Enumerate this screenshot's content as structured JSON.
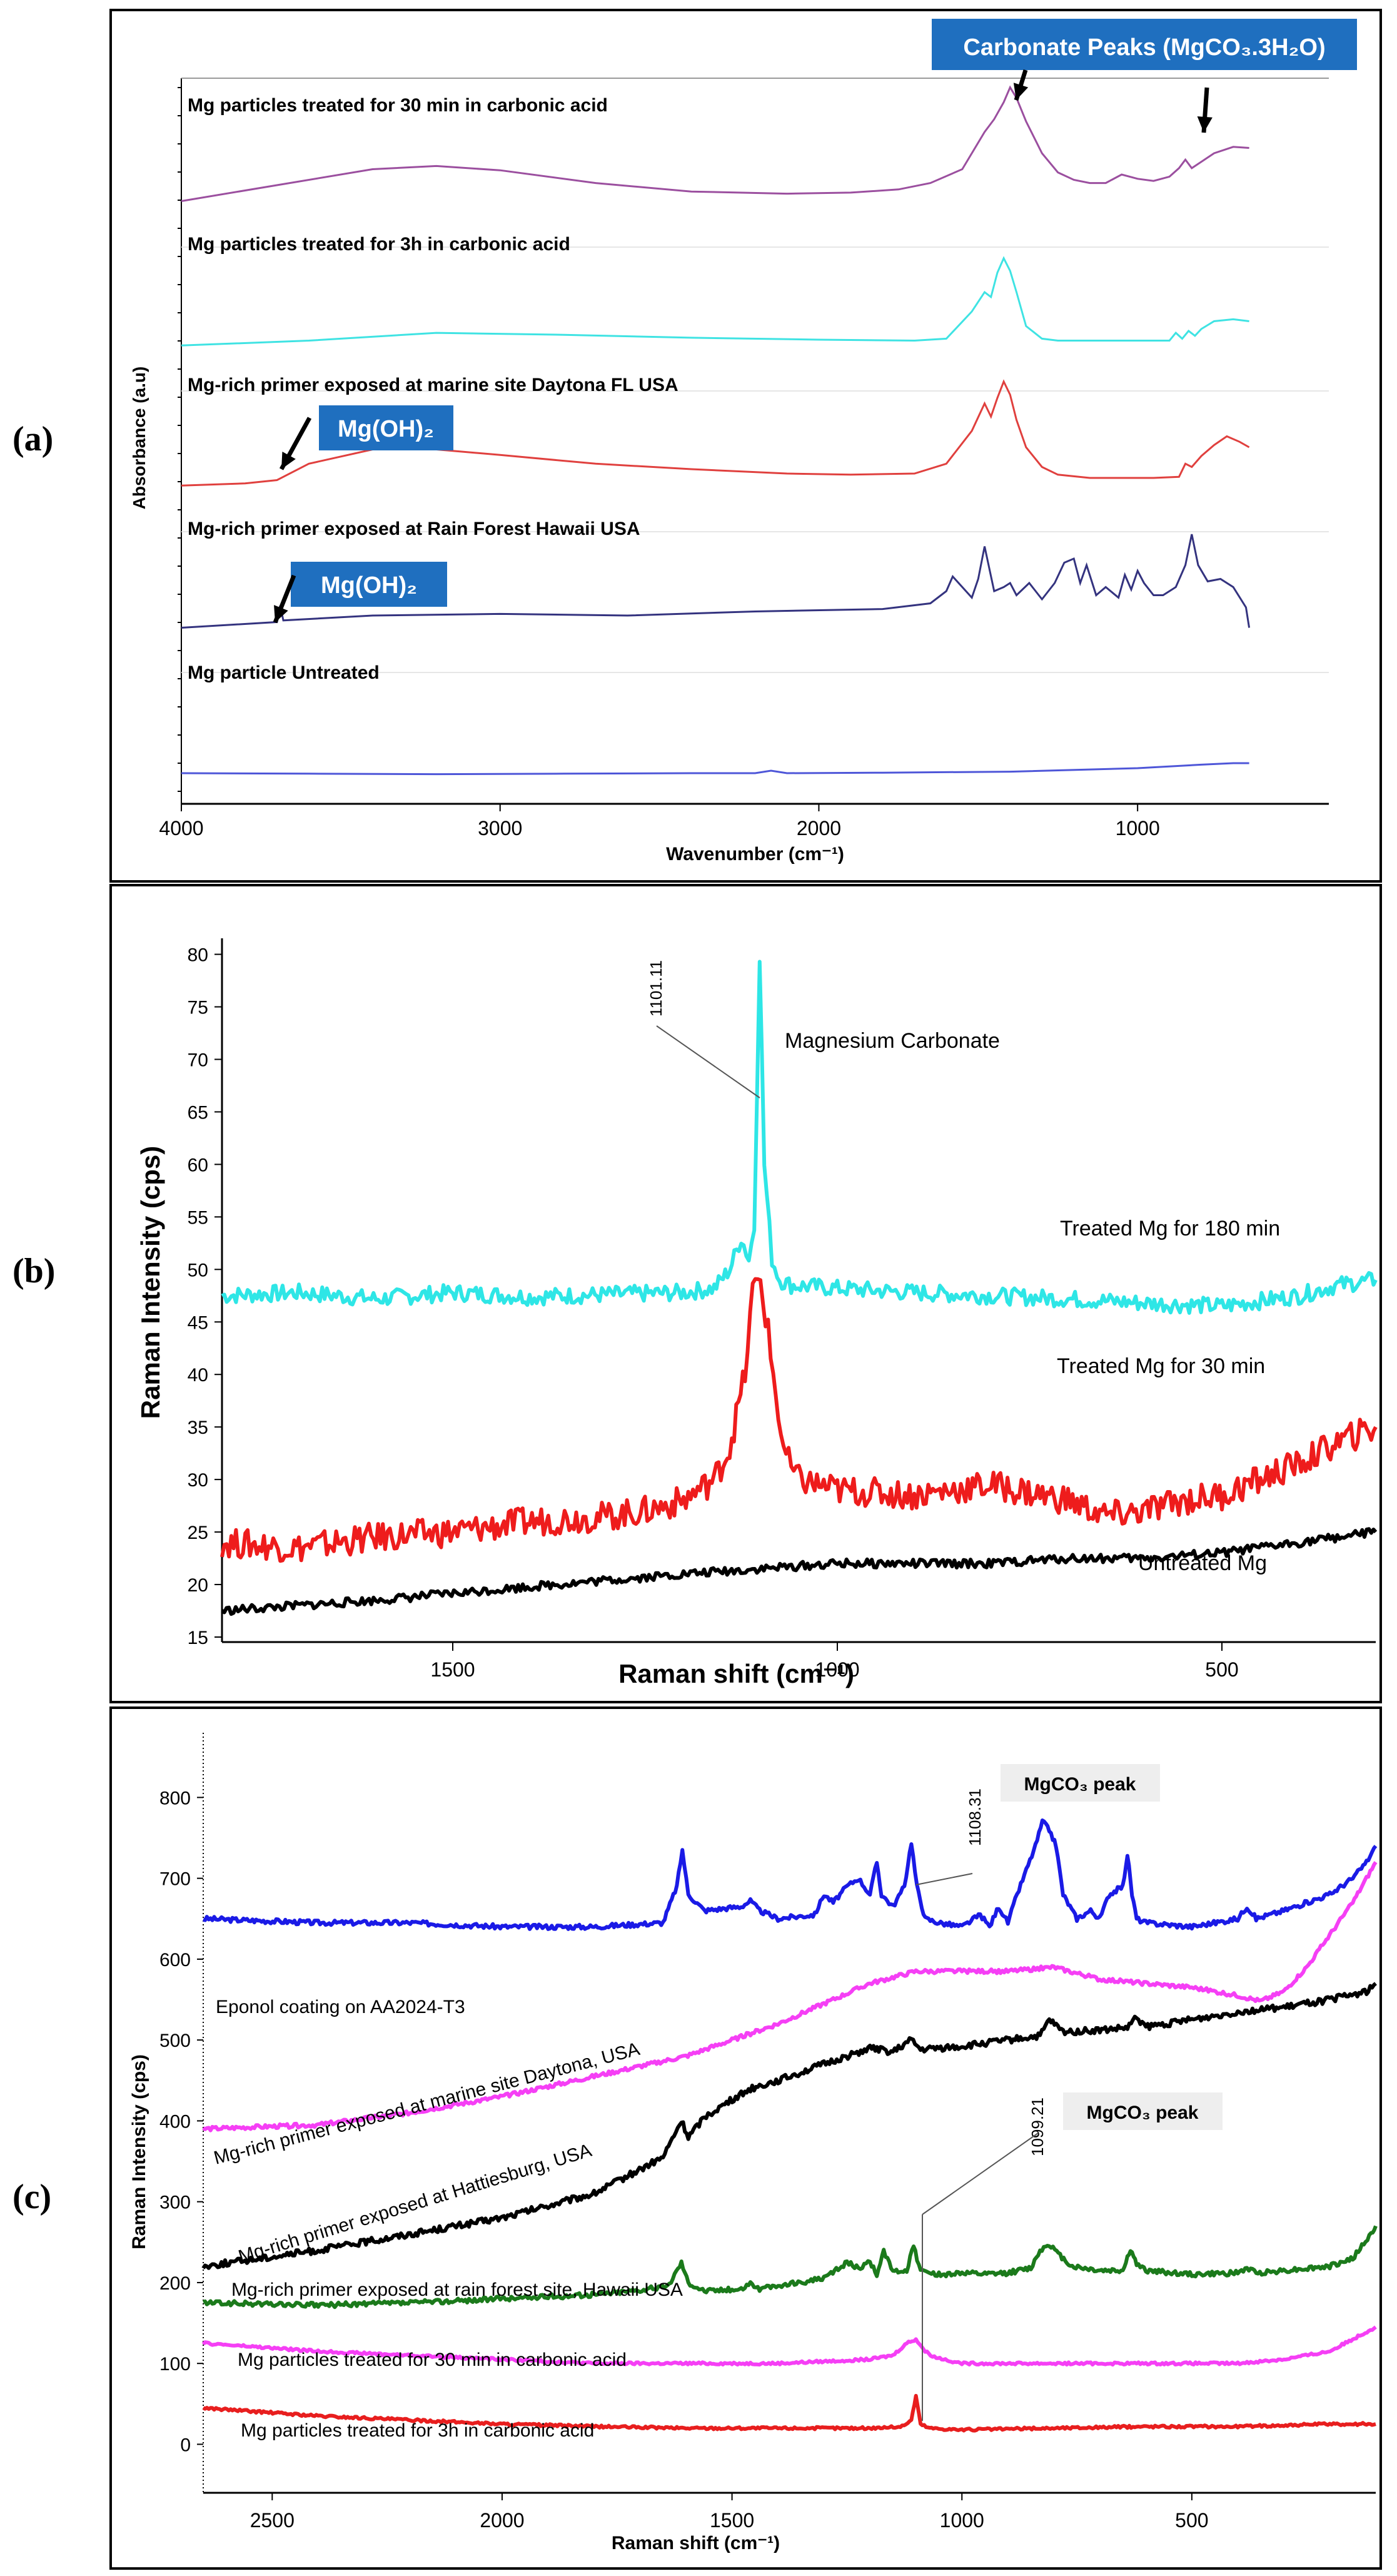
{
  "panel_labels": [
    "(a)",
    "(b)",
    "(c)"
  ],
  "chart_data": [
    {
      "type": "line",
      "title": "",
      "xlabel": "Wavenumber (cm⁻¹)",
      "ylabel": "Absorbance (a.u)",
      "xlim": [
        4000,
        400
      ],
      "ylim": [
        0,
        5
      ],
      "xticks": [
        4000,
        3000,
        2000,
        1000
      ],
      "stacked_offsets": [
        4,
        3,
        2,
        1,
        0
      ],
      "series": [
        {
          "name": "Mg particles treated for 30 min in carbonic acid",
          "color": "#9b4f9f",
          "x": [
            4000,
            3700,
            3400,
            3200,
            3000,
            2700,
            2400,
            2100,
            1900,
            1750,
            1650,
            1550,
            1480,
            1450,
            1420,
            1400,
            1380,
            1350,
            1300,
            1250,
            1200,
            1150,
            1100,
            1050,
            1000,
            950,
            900,
            870,
            850,
            830,
            800,
            760,
            700,
            650
          ],
          "y": [
            0.05,
            0.2,
            0.35,
            0.38,
            0.34,
            0.22,
            0.14,
            0.12,
            0.13,
            0.16,
            0.22,
            0.35,
            0.7,
            0.82,
            0.98,
            1.12,
            1.02,
            0.8,
            0.5,
            0.32,
            0.25,
            0.22,
            0.22,
            0.3,
            0.26,
            0.24,
            0.28,
            0.36,
            0.44,
            0.36,
            0.42,
            0.5,
            0.56,
            0.55
          ]
        },
        {
          "name": "Mg particles treated for 3h in carbonic acid",
          "color": "#3fe3e3",
          "x": [
            4000,
            3600,
            3200,
            2800,
            2400,
            2000,
            1700,
            1600,
            1520,
            1480,
            1460,
            1440,
            1420,
            1400,
            1380,
            1350,
            1300,
            1250,
            1200,
            1100,
            1000,
            900,
            880,
            860,
            840,
            820,
            800,
            760,
            700,
            650
          ],
          "y": [
            0.05,
            0.1,
            0.18,
            0.16,
            0.13,
            0.11,
            0.1,
            0.12,
            0.4,
            0.6,
            0.55,
            0.8,
            0.95,
            0.82,
            0.6,
            0.25,
            0.12,
            0.1,
            0.1,
            0.1,
            0.1,
            0.1,
            0.18,
            0.12,
            0.2,
            0.15,
            0.22,
            0.3,
            0.32,
            0.3
          ]
        },
        {
          "name": "Mg-rich primer exposed at marine site Daytona FL USA",
          "color": "#e0403e",
          "x": [
            4000,
            3800,
            3700,
            3600,
            3400,
            3200,
            3000,
            2700,
            2400,
            2100,
            1900,
            1700,
            1600,
            1520,
            1480,
            1460,
            1440,
            1420,
            1400,
            1380,
            1350,
            1300,
            1250,
            1150,
            1050,
            950,
            870,
            850,
            830,
            800,
            760,
            720,
            680,
            650
          ],
          "y": [
            0.05,
            0.07,
            0.1,
            0.25,
            0.38,
            0.38,
            0.33,
            0.25,
            0.2,
            0.16,
            0.15,
            0.16,
            0.25,
            0.55,
            0.8,
            0.68,
            0.85,
            1.0,
            0.88,
            0.65,
            0.4,
            0.22,
            0.15,
            0.12,
            0.12,
            0.12,
            0.13,
            0.25,
            0.22,
            0.32,
            0.42,
            0.5,
            0.45,
            0.4
          ]
        },
        {
          "name": "Mg-rich primer exposed at Rain Forest Hawaii USA",
          "color": "#34337f",
          "x": [
            4000,
            3700,
            3690,
            3680,
            3400,
            3000,
            2600,
            2200,
            1800,
            1650,
            1600,
            1580,
            1520,
            1500,
            1480,
            1450,
            1420,
            1400,
            1380,
            1340,
            1300,
            1260,
            1230,
            1200,
            1180,
            1160,
            1130,
            1100,
            1060,
            1040,
            1020,
            1000,
            980,
            950,
            920,
            880,
            850,
            830,
            810,
            780,
            740,
            700,
            660,
            650
          ],
          "y": [
            0.05,
            0.12,
            0.32,
            0.14,
            0.2,
            0.22,
            0.2,
            0.25,
            0.28,
            0.35,
            0.5,
            0.68,
            0.42,
            0.65,
            1.05,
            0.5,
            0.55,
            0.6,
            0.45,
            0.6,
            0.4,
            0.6,
            0.85,
            0.9,
            0.6,
            0.82,
            0.45,
            0.55,
            0.42,
            0.7,
            0.52,
            0.75,
            0.6,
            0.45,
            0.45,
            0.55,
            0.82,
            1.2,
            0.82,
            0.62,
            0.65,
            0.55,
            0.3,
            0.05
          ]
        },
        {
          "name": "Mg particle Untreated",
          "color": "#4e56d8",
          "x": [
            4000,
            3600,
            3200,
            2800,
            2400,
            2200,
            2150,
            2100,
            1800,
            1400,
            1000,
            800,
            700,
            650
          ],
          "y": [
            0.05,
            0.04,
            0.03,
            0.04,
            0.05,
            0.05,
            0.1,
            0.05,
            0.06,
            0.08,
            0.15,
            0.22,
            0.25,
            0.25
          ]
        }
      ],
      "annotations": [
        "Carbonate Peaks (MgCO₃.3H₂O)",
        "Mg(OH)₂",
        "Mg(OH)₂"
      ]
    },
    {
      "type": "line",
      "title": "",
      "xlabel": "Raman shift (cm⁻¹)",
      "ylabel": "Raman Intensity (cps)",
      "xlim": [
        1800,
        300
      ],
      "ylim": [
        15,
        82
      ],
      "xticks": [
        1500,
        1000,
        500
      ],
      "yticks": [
        15,
        20,
        25,
        30,
        35,
        40,
        45,
        50,
        55,
        60,
        65,
        70,
        75,
        80
      ],
      "series": [
        {
          "name": "Treated Mg for 180 min",
          "color": "#2ee6e6",
          "x": [
            1800,
            1700,
            1600,
            1500,
            1400,
            1300,
            1200,
            1160,
            1140,
            1125,
            1115,
            1108,
            1101,
            1095,
            1085,
            1075,
            1060,
            1000,
            900,
            800,
            700,
            600,
            500,
            400,
            350,
            300
          ],
          "y": [
            47.5,
            47.8,
            47.2,
            47.8,
            47.4,
            47.6,
            47.8,
            48.2,
            50,
            53,
            51,
            54,
            80,
            60,
            51,
            49,
            48.5,
            48.2,
            47.8,
            47.5,
            47.2,
            46.8,
            46.5,
            47.5,
            48.5,
            49
          ]
        },
        {
          "name": "Treated Mg for 30 min",
          "color": "#ee1c1c",
          "x": [
            1800,
            1700,
            1600,
            1500,
            1400,
            1300,
            1250,
            1200,
            1160,
            1140,
            1120,
            1110,
            1100,
            1090,
            1080,
            1070,
            1060,
            1050,
            1000,
            900,
            800,
            700,
            650,
            600,
            550,
            500,
            450,
            400,
            350,
            300
          ],
          "y": [
            24,
            23.5,
            24.5,
            25,
            26,
            26.5,
            27,
            28,
            30,
            33,
            40,
            48,
            49,
            44,
            38,
            33,
            31,
            30,
            29,
            28.5,
            29.5,
            28,
            26.5,
            27,
            28,
            28.5,
            30,
            31.5,
            33.5,
            35
          ]
        },
        {
          "name": "Untreated Mg",
          "color": "#000000",
          "x": [
            1800,
            1600,
            1400,
            1200,
            1000,
            800,
            700,
            600,
            500,
            400,
            350,
            300
          ],
          "y": [
            17.5,
            18.5,
            19.8,
            21,
            22,
            22,
            22.5,
            22.5,
            23,
            24,
            24.5,
            25
          ]
        }
      ],
      "annotations": [
        "1101.11",
        "Magnesium Carbonate"
      ]
    },
    {
      "type": "line",
      "title": "",
      "xlabel": "Raman shift (cm⁻¹)",
      "ylabel": "Raman Intensity (cps)",
      "xlim": [
        2650,
        100
      ],
      "ylim": [
        -60,
        880
      ],
      "xticks": [
        2500,
        2000,
        1500,
        1000,
        500
      ],
      "yticks": [
        0,
        100,
        200,
        300,
        400,
        500,
        600,
        700,
        800
      ],
      "series": [
        {
          "name": "Eponol coating  on  AA2024-T3",
          "color": "#1a1ae6",
          "x": [
            2650,
            2400,
            2200,
            2000,
            1800,
            1650,
            1620,
            1608,
            1595,
            1560,
            1480,
            1460,
            1440,
            1400,
            1320,
            1300,
            1280,
            1250,
            1225,
            1200,
            1185,
            1175,
            1150,
            1125,
            1110,
            1098,
            1080,
            1050,
            1000,
            960,
            940,
            920,
            900,
            880,
            860,
            840,
            825,
            810,
            795,
            780,
            750,
            720,
            700,
            680,
            650,
            640,
            630,
            620,
            600,
            500,
            400,
            380,
            360,
            300,
            250,
            200,
            150,
            120,
            100
          ],
          "y": [
            650,
            645,
            645,
            640,
            640,
            645,
            690,
            735,
            680,
            660,
            665,
            672,
            660,
            650,
            655,
            680,
            670,
            690,
            700,
            680,
            720,
            680,
            665,
            690,
            745,
            690,
            650,
            645,
            640,
            655,
            640,
            665,
            645,
            680,
            710,
            740,
            770,
            760,
            740,
            680,
            650,
            660,
            650,
            680,
            690,
            730,
            680,
            650,
            645,
            640,
            650,
            665,
            650,
            660,
            670,
            680,
            700,
            720,
            740
          ]
        },
        {
          "name": "Mg-rich primer exposed at marine site Daytona, USA",
          "color": "#f53ff5",
          "x": [
            2650,
            2400,
            2200,
            2000,
            1800,
            1600,
            1400,
            1200,
            1100,
            1000,
            900,
            800,
            700,
            600,
            500,
            400,
            350,
            300,
            250,
            200,
            150,
            120,
            100
          ],
          "y": [
            390,
            395,
            410,
            430,
            455,
            480,
            520,
            570,
            585,
            585,
            585,
            590,
            575,
            570,
            565,
            555,
            548,
            560,
            590,
            630,
            670,
            700,
            720
          ]
        },
        {
          "name": "Mg-rich primer exposed at Hattiesburg, USA",
          "color": "#000000",
          "x": [
            2650,
            2400,
            2200,
            2000,
            1800,
            1650,
            1610,
            1595,
            1560,
            1460,
            1400,
            1300,
            1200,
            1150,
            1110,
            1090,
            1050,
            1000,
            900,
            830,
            810,
            780,
            700,
            640,
            620,
            600,
            500,
            400,
            300,
            200,
            120,
            100
          ],
          "y": [
            220,
            240,
            260,
            280,
            310,
            355,
            400,
            380,
            405,
            440,
            450,
            470,
            490,
            485,
            500,
            488,
            490,
            492,
            500,
            505,
            525,
            510,
            512,
            515,
            528,
            516,
            525,
            535,
            540,
            550,
            560,
            570
          ]
        },
        {
          "name": "Mg-rich primer exposed at rain forest site, Hawaii USA",
          "color": "#1b7a1b",
          "x": [
            2650,
            2400,
            2200,
            2000,
            1800,
            1640,
            1610,
            1595,
            1560,
            1480,
            1460,
            1440,
            1300,
            1250,
            1225,
            1200,
            1185,
            1170,
            1150,
            1120,
            1105,
            1090,
            1050,
            1000,
            950,
            900,
            850,
            830,
            810,
            790,
            760,
            700,
            650,
            640,
            630,
            620,
            600,
            500,
            400,
            380,
            360,
            300,
            200,
            150,
            110,
            100
          ],
          "y": [
            175,
            172,
            175,
            180,
            185,
            195,
            225,
            200,
            190,
            192,
            200,
            192,
            205,
            225,
            218,
            225,
            210,
            238,
            215,
            215,
            245,
            215,
            210,
            212,
            210,
            212,
            218,
            240,
            248,
            235,
            220,
            215,
            215,
            232,
            240,
            222,
            215,
            210,
            212,
            218,
            212,
            215,
            220,
            230,
            260,
            270
          ]
        },
        {
          "name": "Mg particles treated for 30 min in carbonic acid",
          "color": "#f53ff5",
          "x": [
            2650,
            2400,
            2200,
            2000,
            1800,
            1600,
            1400,
            1200,
            1150,
            1120,
            1100,
            1080,
            1060,
            1000,
            800,
            600,
            400,
            300,
            200,
            150,
            100
          ],
          "y": [
            125,
            115,
            110,
            105,
            100,
            100,
            100,
            105,
            110,
            125,
            130,
            115,
            108,
            100,
            100,
            100,
            100,
            105,
            115,
            130,
            145
          ]
        },
        {
          "name": "Mg particles treated for 3h in carbonic acid",
          "color": "#e81e1e",
          "x": [
            2650,
            2400,
            2200,
            2000,
            1800,
            1600,
            1400,
            1200,
            1130,
            1110,
            1100,
            1090,
            1070,
            1000,
            800,
            600,
            400,
            200,
            100
          ],
          "y": [
            45,
            35,
            30,
            25,
            22,
            20,
            20,
            20,
            22,
            30,
            60,
            25,
            20,
            18,
            20,
            22,
            22,
            25,
            25
          ]
        }
      ],
      "annotations": [
        "1108.31",
        "MgCO₃ peak",
        "1099.21",
        "MgCO₃ peak"
      ]
    }
  ]
}
